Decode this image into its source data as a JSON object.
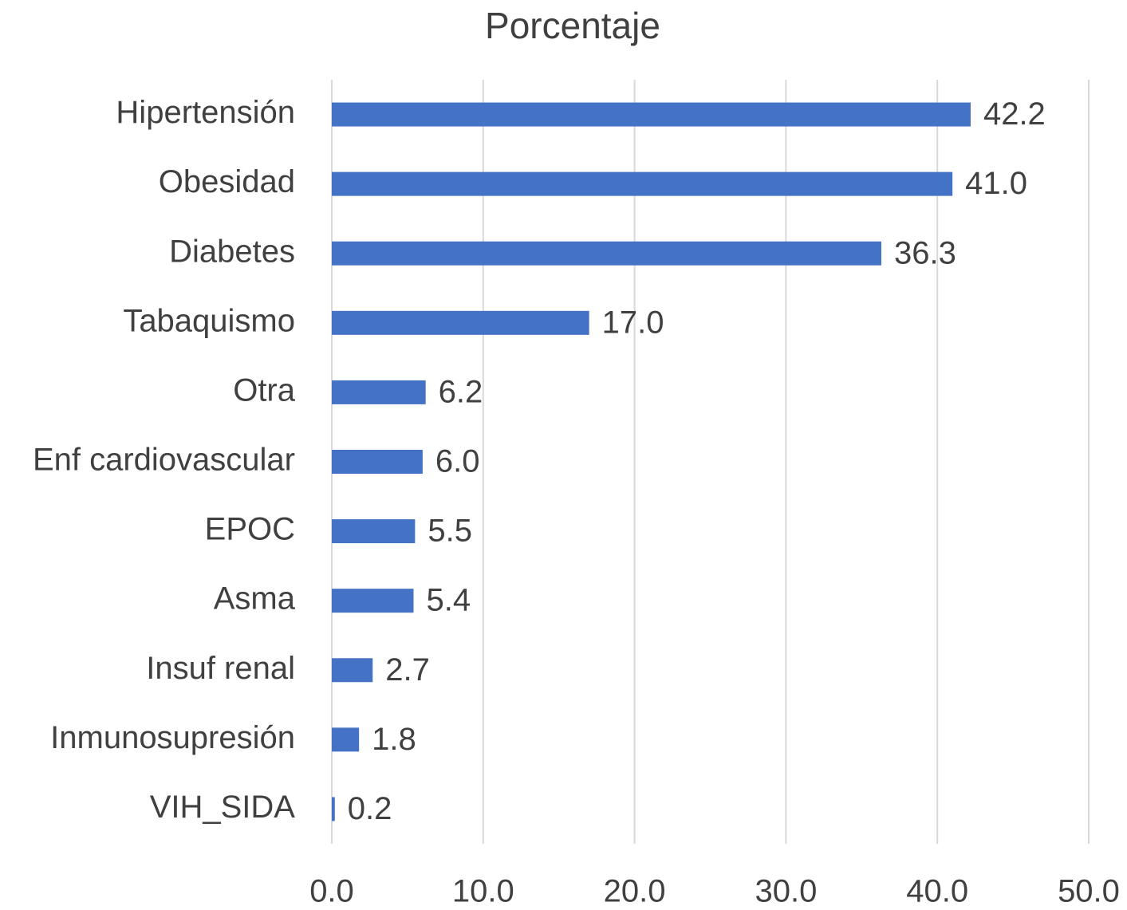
{
  "chart_data": {
    "type": "bar",
    "orientation": "horizontal",
    "title": "Porcentaje",
    "categories": [
      "Hipertensión",
      "Obesidad",
      "Diabetes",
      "Tabaquismo",
      "Otra",
      "Enf cardiovascular",
      "EPOC",
      "Asma",
      "Insuf renal",
      "Inmunosupresión",
      "VIH_SIDA"
    ],
    "values": [
      42.2,
      41.0,
      36.3,
      17.0,
      6.2,
      6.0,
      5.5,
      5.4,
      2.7,
      1.8,
      0.2
    ],
    "value_labels": [
      "42.2",
      "41.0",
      "36.3",
      "17.0",
      "6.2",
      "6.0",
      "5.5",
      "5.4",
      "2.7",
      "1.8",
      "0.2"
    ],
    "color": "#4472c4",
    "xlim": [
      0,
      50
    ],
    "xticks": [
      {
        "value": 0,
        "label": "0.0"
      },
      {
        "value": 10,
        "label": "10.0"
      },
      {
        "value": 20,
        "label": "20.0"
      },
      {
        "value": 30,
        "label": "30.0"
      },
      {
        "value": 40,
        "label": "40.0"
      },
      {
        "value": 50,
        "label": "50.0"
      }
    ],
    "grid": true
  }
}
